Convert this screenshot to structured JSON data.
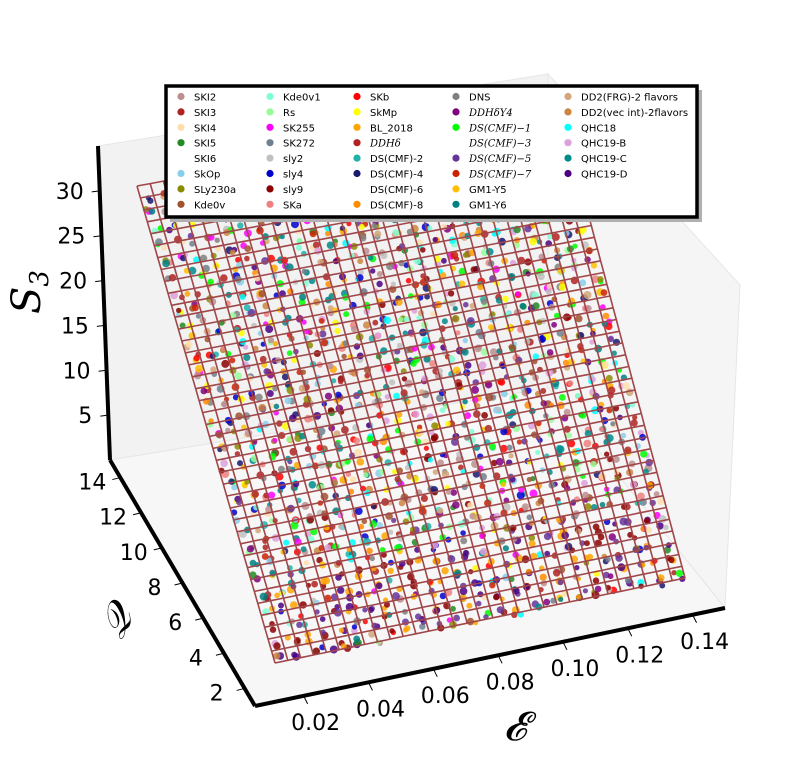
{
  "chart_data": {
    "type": "scatter",
    "projection": "3d",
    "title": "",
    "axes": {
      "x": {
        "label": "𝓔",
        "ticks": [
          "0.02",
          "0.04",
          "0.06",
          "0.08",
          "0.10",
          "0.12",
          "0.14"
        ],
        "range": [
          0.005,
          0.15
        ]
      },
      "y": {
        "label": "𝒬",
        "ticks": [
          "2",
          "4",
          "6",
          "8",
          "10",
          "12",
          "14"
        ],
        "range": [
          1,
          15
        ]
      },
      "z": {
        "label": "S",
        "sublabel": "3",
        "ticks": [
          "5",
          "10",
          "15",
          "20",
          "25",
          "30"
        ],
        "range": [
          0,
          35
        ]
      }
    },
    "surface": {
      "type": "wireframe",
      "color": "#a0474a",
      "grid": [
        32,
        40
      ]
    },
    "legend": {
      "placement": "top",
      "ncols": 5,
      "entries": [
        {
          "name": "SKI2",
          "color": "#bc8f8f"
        },
        {
          "name": "SKI3",
          "color": "#b22222"
        },
        {
          "name": "SKI4",
          "color": "#ffdead"
        },
        {
          "name": "SKI5",
          "color": "#228b22"
        },
        {
          "name": "SKI6",
          "color": "#ffffff"
        },
        {
          "name": "SkOp",
          "color": "#87ceeb"
        },
        {
          "name": "SLy230a",
          "color": "#8b8b00"
        },
        {
          "name": "Kde0v",
          "color": "#a0522d"
        },
        {
          "name": "Kde0v1",
          "color": "#7fffd4"
        },
        {
          "name": "Rs",
          "color": "#98fb98"
        },
        {
          "name": "SK255",
          "color": "#ff00ff"
        },
        {
          "name": "SK272",
          "color": "#708090"
        },
        {
          "name": "sly2",
          "color": "#c0c0c0"
        },
        {
          "name": "sly4",
          "color": "#0000cd"
        },
        {
          "name": "sly9",
          "color": "#8b0000"
        },
        {
          "name": "SKa",
          "color": "#f08080"
        },
        {
          "name": "SKb",
          "color": "#ff0000"
        },
        {
          "name": "SkMp",
          "color": "#ffff00"
        },
        {
          "name": "BL_2018",
          "color": "#ffa500"
        },
        {
          "name": "DDHδ",
          "color": "#b22222",
          "italic": true
        },
        {
          "name": "DS(CMF)-2",
          "color": "#20b2aa"
        },
        {
          "name": "DS(CMF)-4",
          "color": "#191970"
        },
        {
          "name": "DS(CMF)-6",
          "color": "#ffffff"
        },
        {
          "name": "DS(CMF)-8",
          "color": "#ff8c00"
        },
        {
          "name": "DNS",
          "color": "#808080"
        },
        {
          "name": "DDHδY4",
          "color": "#800080",
          "italic": true
        },
        {
          "name": "DS(CMF)−1",
          "color": "#00ff00",
          "italic": true
        },
        {
          "name": "DS(CMF)−3",
          "color": "#ffffff",
          "italic": true
        },
        {
          "name": "DS(CMF)−5",
          "color": "#663399",
          "italic": true
        },
        {
          "name": "DS(CMF)−7",
          "color": "#cc2200",
          "italic": true
        },
        {
          "name": "GM1-Y5",
          "color": "#ffbf00"
        },
        {
          "name": "GM1-Y6",
          "color": "#008080"
        },
        {
          "name": "DD2(FRG)-2 flavors",
          "color": "#d2a679"
        },
        {
          "name": "DD2(vec int)-2flavors",
          "color": "#cd853f"
        },
        {
          "name": "QHC18",
          "color": "#00ffff"
        },
        {
          "name": "QHC19-B",
          "color": "#dda0dd"
        },
        {
          "name": "QHC19-C",
          "color": "#008b8b"
        },
        {
          "name": "QHC19-D",
          "color": "#4b0082"
        }
      ]
    },
    "grid": false
  }
}
